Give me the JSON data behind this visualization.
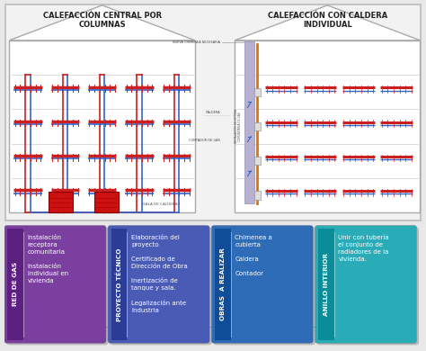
{
  "bg_color": "#f0f0f0",
  "top_bg": "#f0f0f0",
  "left_house_title": "CALEFACCIÓN CENTRAL POR\nCOLUMNAS",
  "right_house_title": "CALEFACCIÓN CON CALDERA\nINDIVIDUAL",
  "boxes": [
    {
      "label": "RED DE GAS",
      "color": "#7B3FA0",
      "items": "Instalación\nreceptora\ncomunitaria\n\nInstalación\nindividual en\nvivienda"
    },
    {
      "label": "PROYECTO TÉCNICO",
      "color": "#4A5BB5",
      "items": "Elaboración del\nproyecto\n\nCertificado de\nDirección de Obra\n\nInertización de\ntanque y sala.\n\nLegalización ante\nIndustria"
    },
    {
      "label": "OBRAS  A REALIZAR",
      "color": "#2E6CB8",
      "items": "Chimenea a\ncubierta\n\nCaldera\n\nContador"
    },
    {
      "label": "ANILLO INTERIOR",
      "color": "#2AACB8",
      "items": "Unir con tubería\nel conjunto de\nradiadores de la\nvivienda."
    }
  ]
}
